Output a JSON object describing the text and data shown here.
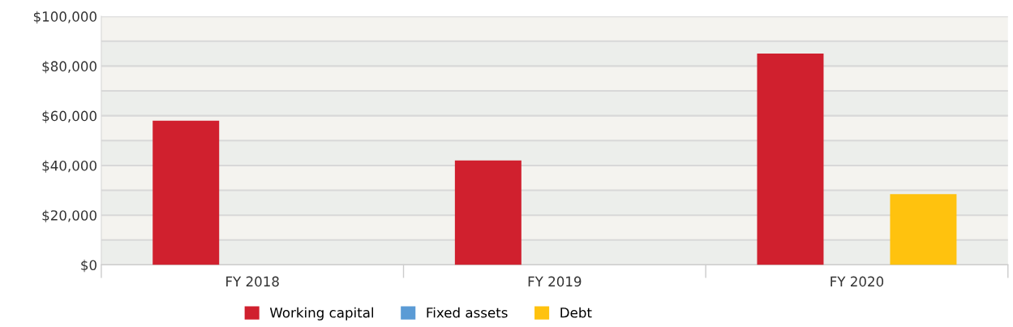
{
  "chart_data": {
    "type": "bar",
    "categories": [
      "FY 2018",
      "FY 2019",
      "FY 2020"
    ],
    "series": [
      {
        "name": "Working capital",
        "color": "#d0202e",
        "values": [
          58000,
          42000,
          85000
        ]
      },
      {
        "name": "Fixed assets",
        "color": "#5b9bd5",
        "values": [
          0,
          0,
          0
        ]
      },
      {
        "name": "Debt",
        "color": "#ffc20e",
        "values": [
          0,
          0,
          28500
        ]
      }
    ],
    "ylim": [
      0,
      100000
    ],
    "yticks": [
      {
        "value": 0,
        "label": "$0"
      },
      {
        "value": 10000,
        "label": null
      },
      {
        "value": 20000,
        "label": "$20,000"
      },
      {
        "value": 30000,
        "label": null
      },
      {
        "value": 40000,
        "label": "$40,000"
      },
      {
        "value": 50000,
        "label": null
      },
      {
        "value": 60000,
        "label": "$60,000"
      },
      {
        "value": 70000,
        "label": null
      },
      {
        "value": 80000,
        "label": "$80,000"
      },
      {
        "value": 90000,
        "label": null
      },
      {
        "value": 100000,
        "label": "$100,000"
      }
    ],
    "bands": [
      {
        "axis": "y",
        "from": 0,
        "to": 10000,
        "color": "#eceeeb"
      },
      {
        "axis": "y",
        "from": 20000,
        "to": 30000,
        "color": "#eceeeb"
      },
      {
        "axis": "y",
        "from": 40000,
        "to": 50000,
        "color": "#eceeeb"
      },
      {
        "axis": "y",
        "from": 60000,
        "to": 70000,
        "color": "#eceeeb"
      },
      {
        "axis": "y",
        "from": 80000,
        "to": 90000,
        "color": "#eceeeb"
      }
    ],
    "grid": "y",
    "legend": "bottom"
  }
}
